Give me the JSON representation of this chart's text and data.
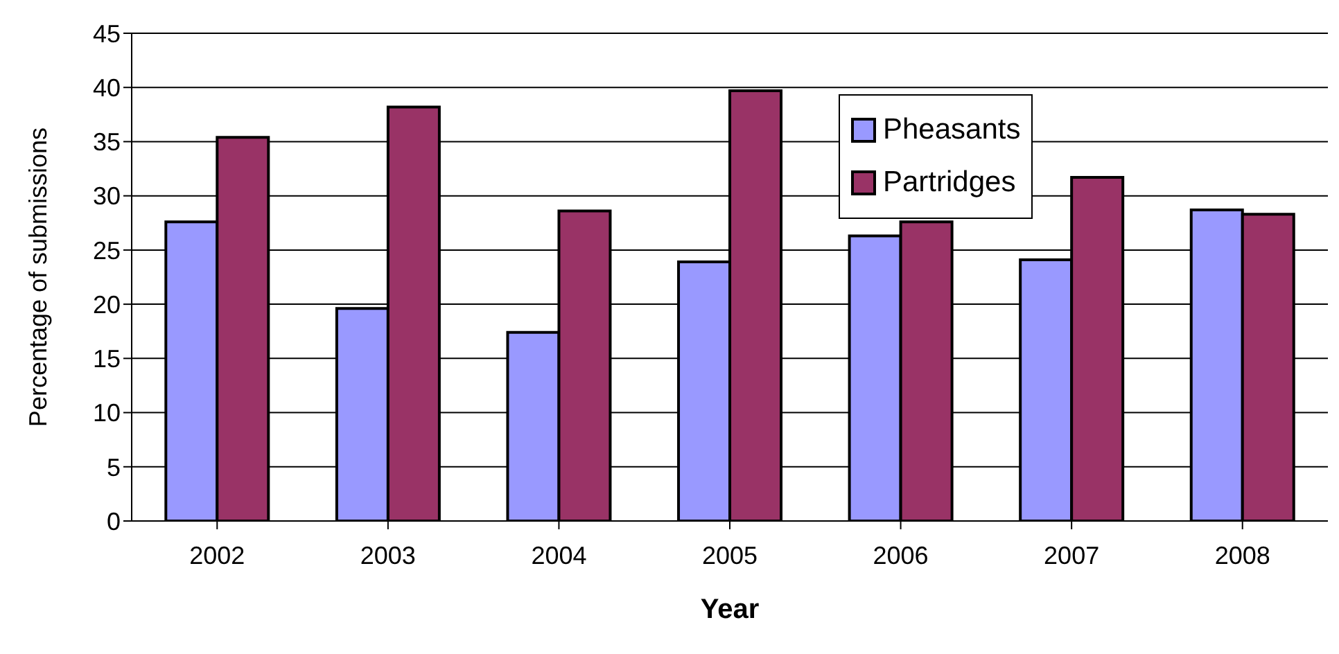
{
  "chart_data": {
    "type": "bar",
    "xlabel": "Year",
    "ylabel": "Percentage of submissions",
    "categories": [
      "2002",
      "2003",
      "2004",
      "2005",
      "2006",
      "2007",
      "2008"
    ],
    "series": [
      {
        "name": "Pheasants",
        "color": "#9999ff",
        "values": [
          27.6,
          19.6,
          17.4,
          23.9,
          26.3,
          24.1,
          28.7
        ]
      },
      {
        "name": "Partridges",
        "color": "#993366",
        "values": [
          35.4,
          38.2,
          28.6,
          39.7,
          27.6,
          31.7,
          28.3
        ]
      }
    ],
    "ylim": [
      0,
      45
    ],
    "yticks": [
      0,
      5,
      10,
      15,
      20,
      25,
      30,
      35,
      40,
      45
    ],
    "grid": "y",
    "legend": "top right"
  }
}
